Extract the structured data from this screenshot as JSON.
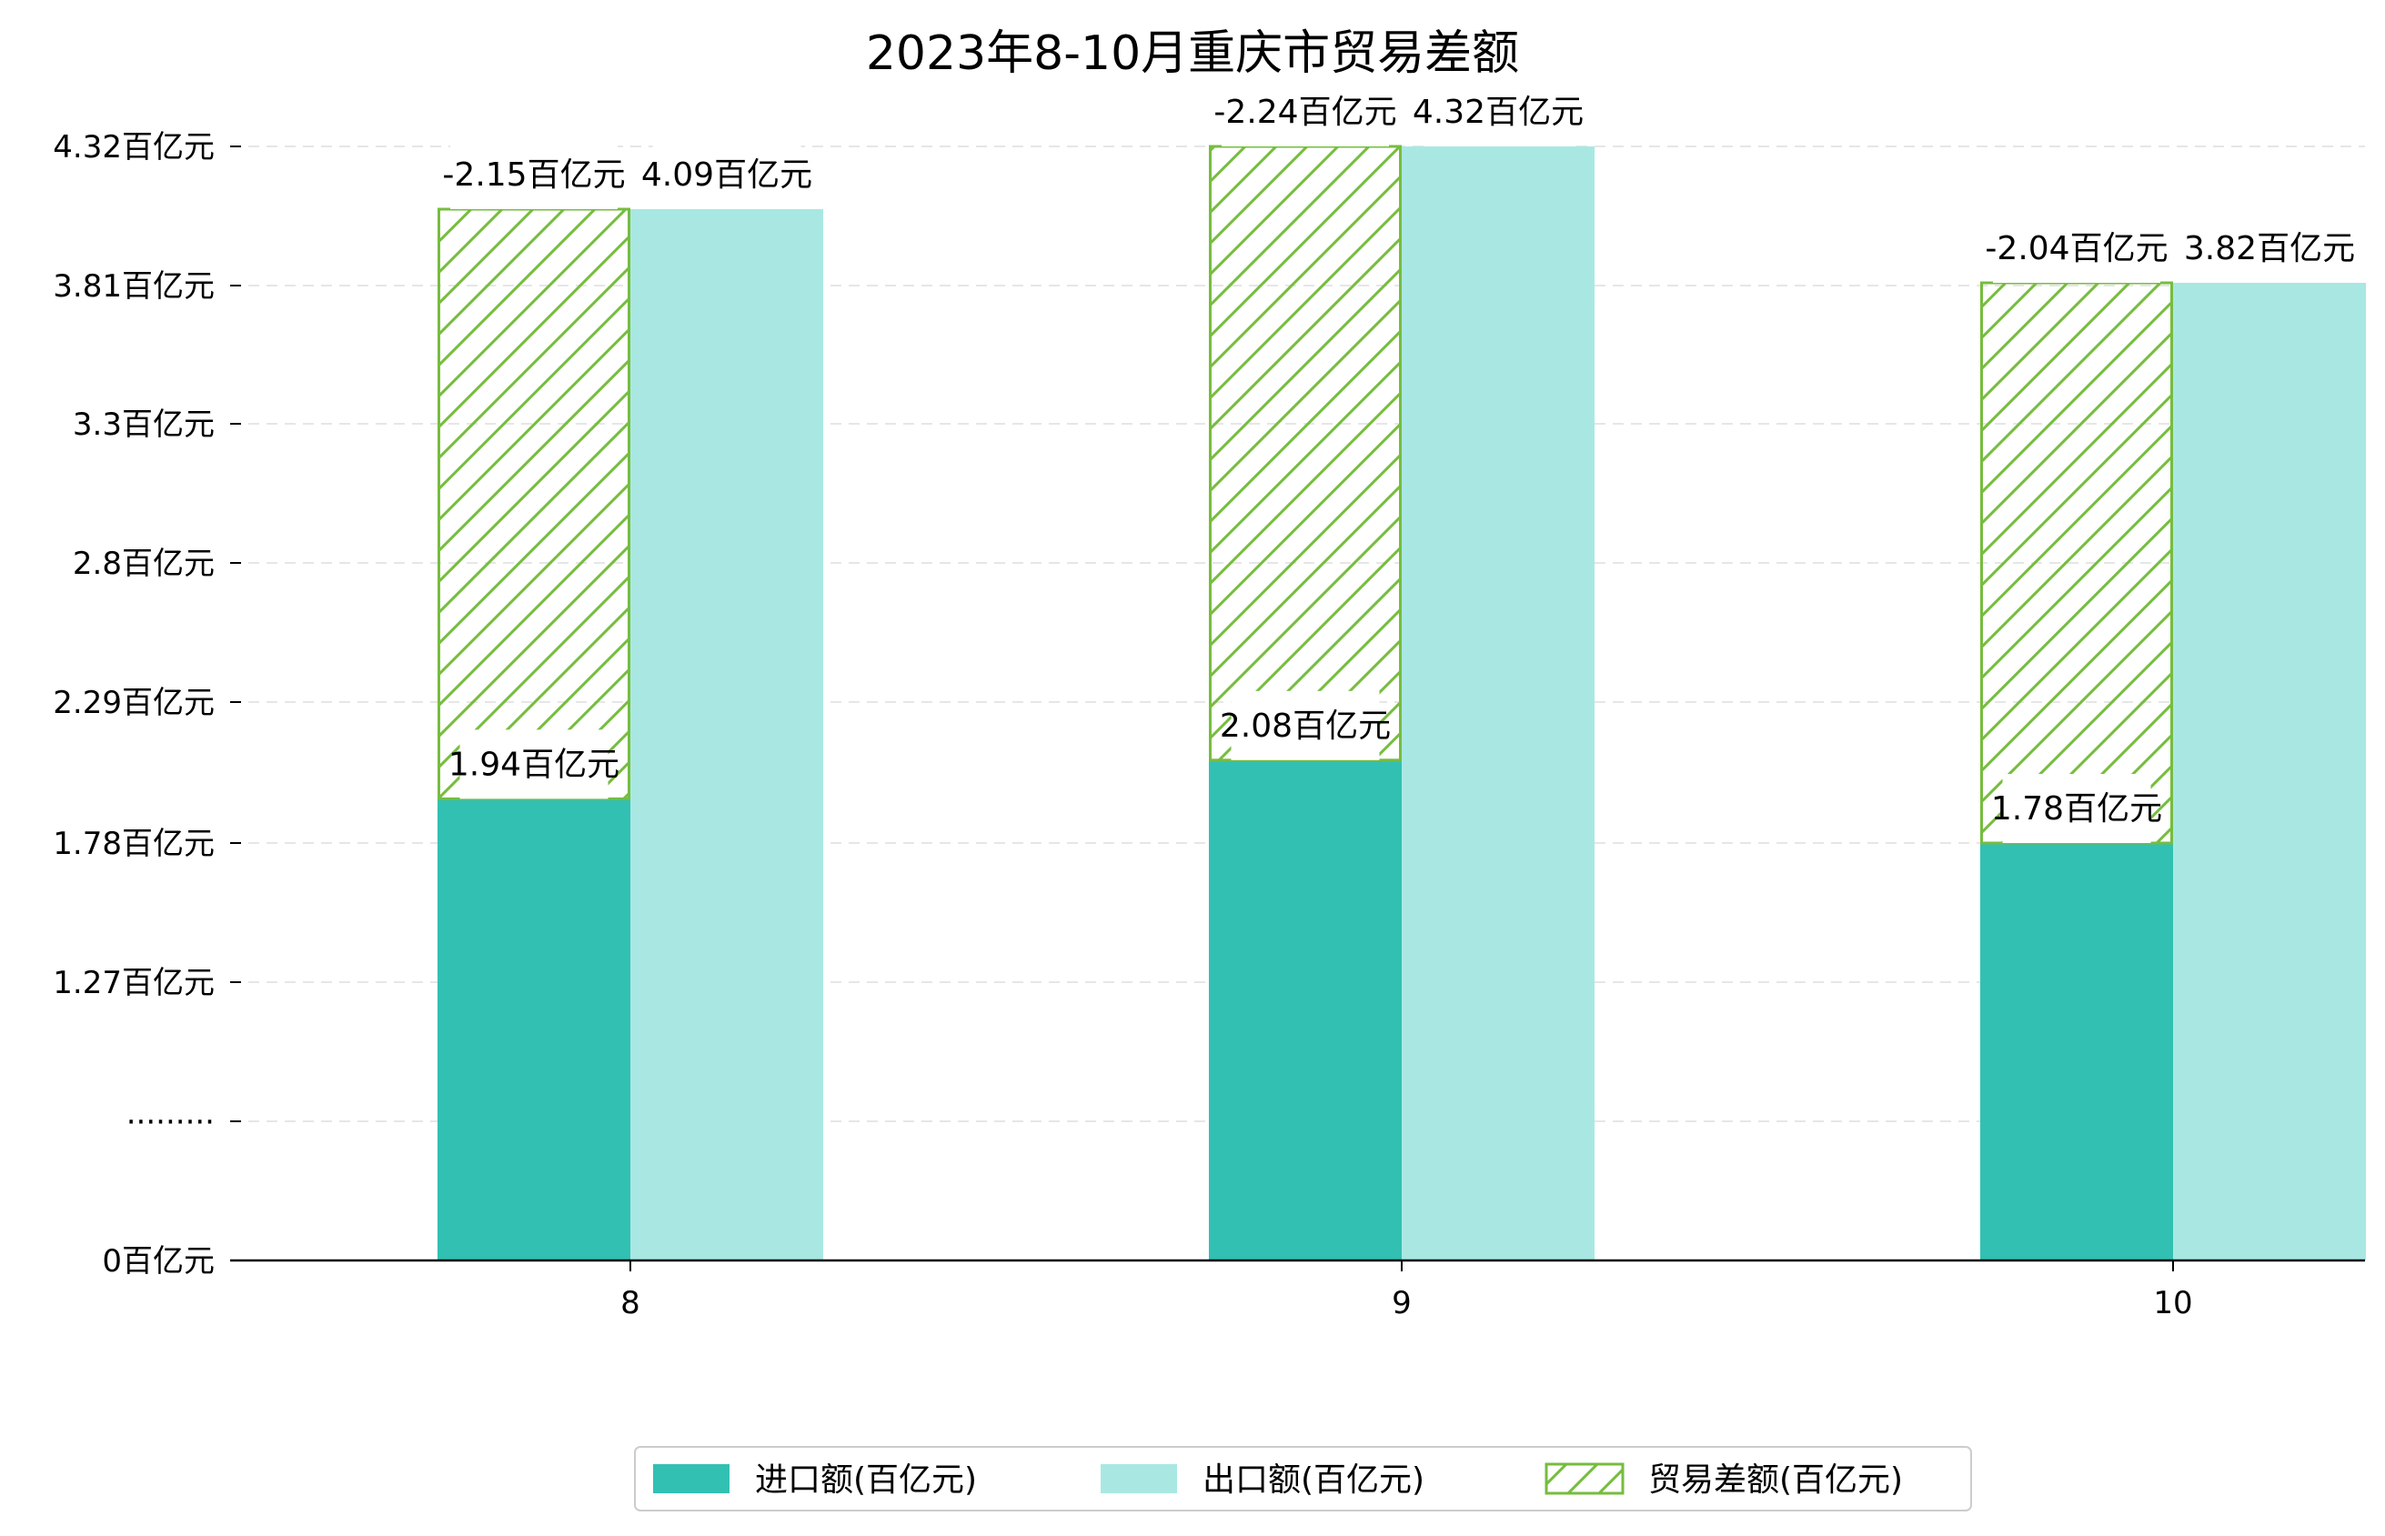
{
  "chart_data": {
    "type": "bar",
    "title": "2023年8-10月重庆市贸易差额",
    "xlabel": "",
    "ylabel": "",
    "categories": [
      "8",
      "9",
      "10"
    ],
    "series": [
      {
        "name": "进口额(百亿元)",
        "values": [
          1.94,
          2.08,
          1.78
        ],
        "color": "#32c0b3",
        "labels": [
          "1.94百亿元",
          "2.08百亿元",
          "1.78百亿元"
        ]
      },
      {
        "name": "出口额(百亿元)",
        "values": [
          4.09,
          4.32,
          3.82
        ],
        "color": "#a9e8e2",
        "labels": [
          "4.09百亿元",
          "4.32百亿元",
          "3.82百亿元"
        ]
      },
      {
        "name": "贸易差额(百亿元)",
        "values": [
          -2.15,
          -2.24,
          -2.04
        ],
        "color": "#76bd3e",
        "hatch": true,
        "labels": [
          "-2.15百亿元",
          "-2.24百亿元",
          "-2.04百亿元"
        ]
      }
    ],
    "y_ticks": [
      {
        "label": "0百亿元",
        "value": 0
      },
      {
        "label": "·········",
        "value": null
      },
      {
        "label": "1.27百亿元",
        "value": 1.27
      },
      {
        "label": "1.78百亿元",
        "value": 1.78
      },
      {
        "label": "2.29百亿元",
        "value": 2.29
      },
      {
        "label": "2.8百亿元",
        "value": 2.8
      },
      {
        "label": "3.3百亿元",
        "value": 3.3
      },
      {
        "label": "3.81百亿元",
        "value": 3.81
      },
      {
        "label": "4.32百亿元",
        "value": 4.32
      }
    ],
    "y_axis_break": true,
    "grid": "horizontal dashed",
    "legend_position": "bottom-center"
  }
}
